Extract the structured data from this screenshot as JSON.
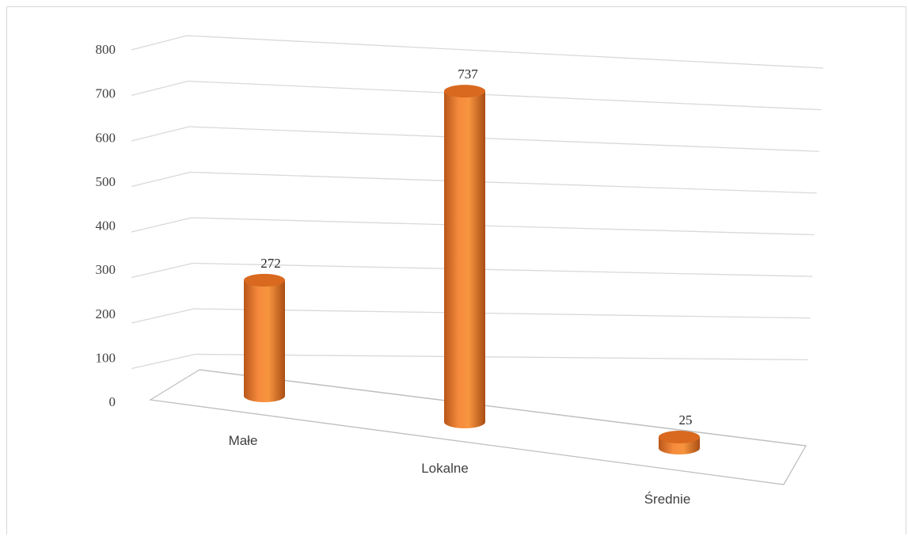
{
  "chart_data": {
    "type": "bar",
    "style": "3d-cylinder",
    "categories": [
      "Małe",
      "Lokalne",
      "Średnie"
    ],
    "values": [
      272,
      737,
      25
    ],
    "data_labels": [
      "272",
      "737",
      "25"
    ],
    "yticks": [
      "0",
      "100",
      "200",
      "300",
      "400",
      "500",
      "600",
      "700",
      "800"
    ],
    "ylim": [
      0,
      800
    ],
    "grid": true,
    "legend": "none",
    "bar_color": "#ED7D31"
  }
}
